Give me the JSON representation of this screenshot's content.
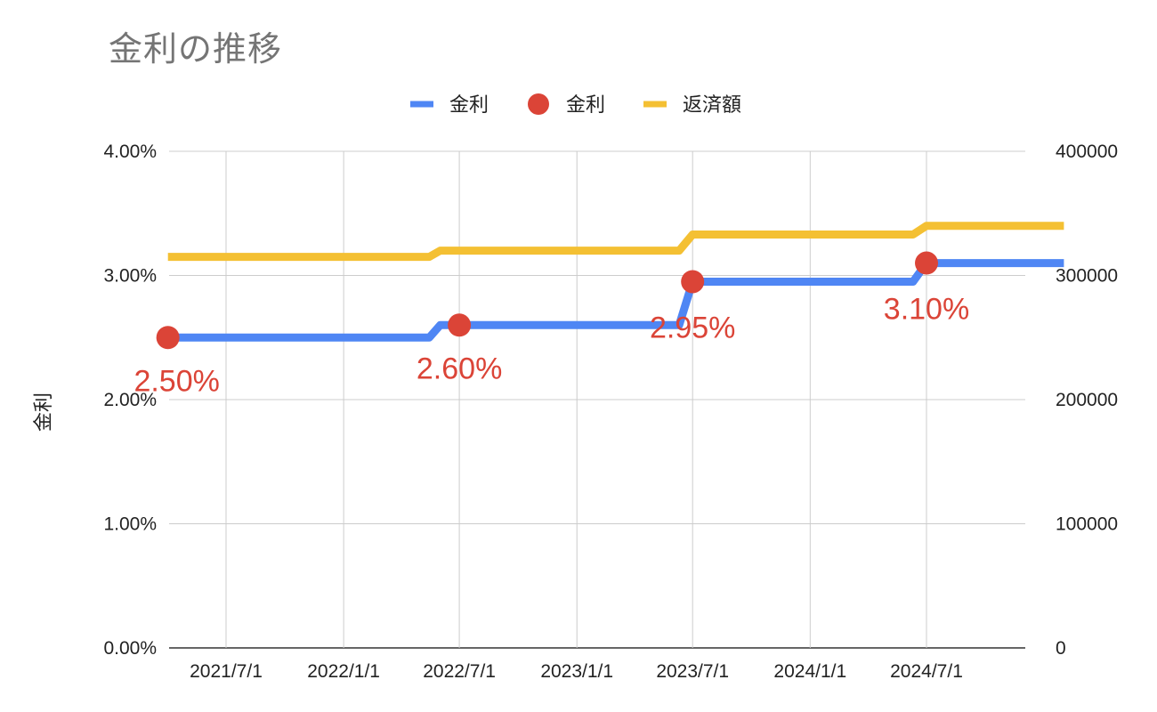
{
  "chart_data": {
    "type": "line",
    "title": "金利の推移",
    "ylabel": "金利",
    "ylabel_right": "",
    "xlabel": "",
    "x_ticks": [
      "2021/7/1",
      "2022/1/1",
      "2022/7/1",
      "2023/1/1",
      "2023/7/1",
      "2024/1/1",
      "2024/7/1"
    ],
    "y_left": {
      "range": [
        0,
        0.04
      ],
      "ticks": [
        "0.00%",
        "1.00%",
        "2.00%",
        "3.00%",
        "4.00%"
      ]
    },
    "y_right": {
      "range": [
        0,
        400000
      ],
      "ticks": [
        "0",
        "100000",
        "200000",
        "300000",
        "400000"
      ]
    },
    "grid": true,
    "legend_position": "top",
    "series": [
      {
        "name": "金利",
        "kind": "line",
        "axis": "left",
        "color": "#4f86f4",
        "points": [
          [
            "2021-04-01",
            0.025
          ],
          [
            "2022-05-15",
            0.025
          ],
          [
            "2022-06-01",
            0.026
          ],
          [
            "2023-06-10",
            0.026
          ],
          [
            "2023-07-01",
            0.0295
          ],
          [
            "2024-06-10",
            0.0295
          ],
          [
            "2024-07-01",
            0.031
          ],
          [
            "2025-02-01",
            0.031
          ]
        ]
      },
      {
        "name": "金利",
        "kind": "scatter",
        "axis": "left",
        "color": "#db4437",
        "points": [
          [
            "2021-04-01",
            0.025,
            "2.50%"
          ],
          [
            "2022-07-01",
            0.026,
            "2.60%"
          ],
          [
            "2023-07-01",
            0.0295,
            "2.95%"
          ],
          [
            "2024-07-01",
            0.031,
            "3.10%"
          ]
        ]
      },
      {
        "name": "返済額",
        "kind": "line",
        "axis": "right",
        "color": "#f4c033",
        "points": [
          [
            "2021-04-01",
            315000
          ],
          [
            "2022-05-15",
            315000
          ],
          [
            "2022-06-01",
            320000
          ],
          [
            "2023-06-10",
            320000
          ],
          [
            "2023-07-01",
            333000
          ],
          [
            "2024-06-10",
            333000
          ],
          [
            "2024-07-01",
            340000
          ],
          [
            "2025-02-01",
            340000
          ]
        ]
      }
    ]
  }
}
